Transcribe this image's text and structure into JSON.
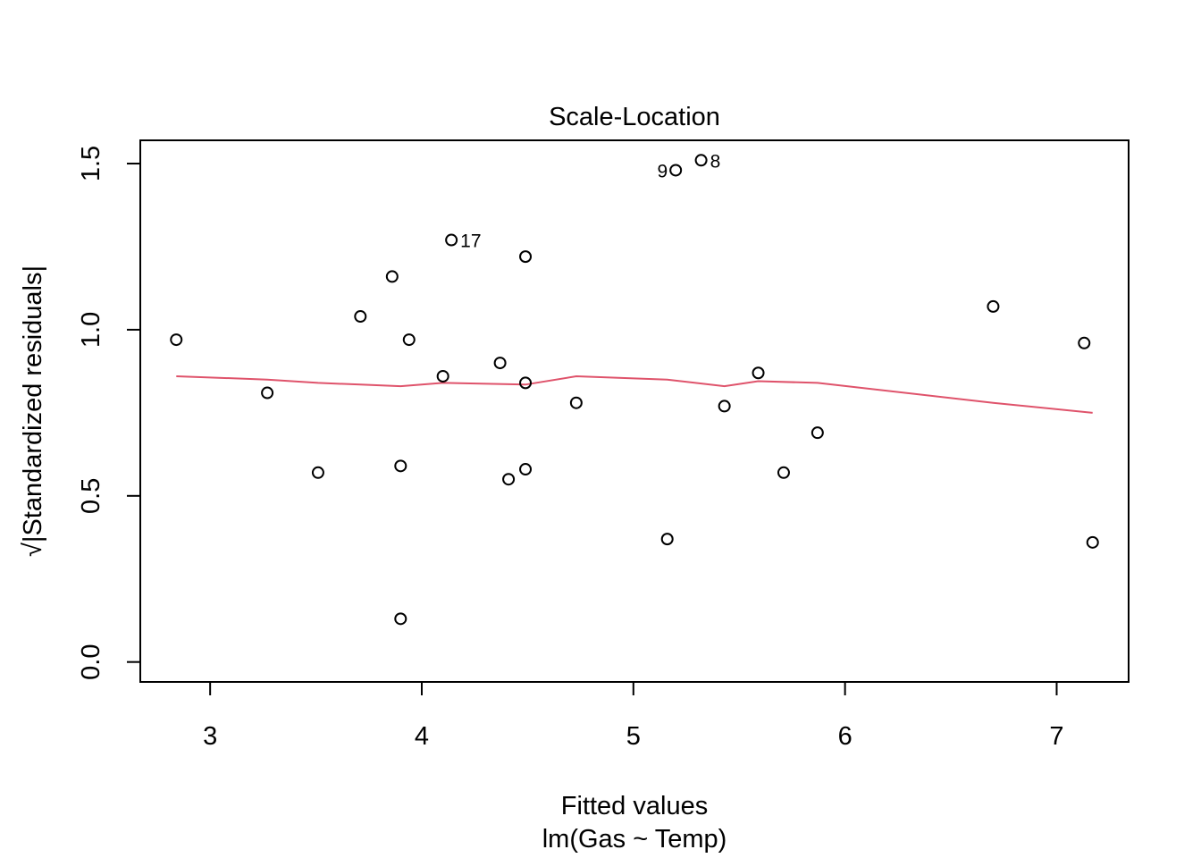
{
  "chart_data": {
    "type": "scatter",
    "title": "Scale-Location",
    "xlabel": "Fitted values",
    "xsublabel": "lm(Gas ~ Temp)",
    "ylabel": "√|Standardized residuals|",
    "xlim": [
      2.67,
      7.34
    ],
    "ylim": [
      -0.06,
      1.57
    ],
    "xticks": [
      3,
      4,
      5,
      6,
      7
    ],
    "yticks": [
      0.0,
      0.5,
      1.0,
      1.5
    ],
    "ytick_labels": [
      "0.0",
      "0.5",
      "1.0",
      "1.5"
    ],
    "points": [
      {
        "x": 2.84,
        "y": 0.97
      },
      {
        "x": 3.27,
        "y": 0.81
      },
      {
        "x": 3.51,
        "y": 0.57
      },
      {
        "x": 3.71,
        "y": 1.04
      },
      {
        "x": 3.86,
        "y": 1.16
      },
      {
        "x": 3.9,
        "y": 0.59
      },
      {
        "x": 3.9,
        "y": 0.13
      },
      {
        "x": 3.94,
        "y": 0.97
      },
      {
        "x": 4.1,
        "y": 0.86
      },
      {
        "x": 4.14,
        "y": 1.27,
        "label": "17"
      },
      {
        "x": 4.37,
        "y": 0.9
      },
      {
        "x": 4.41,
        "y": 0.55
      },
      {
        "x": 4.49,
        "y": 1.22
      },
      {
        "x": 4.49,
        "y": 0.84
      },
      {
        "x": 4.49,
        "y": 0.58
      },
      {
        "x": 4.73,
        "y": 0.78
      },
      {
        "x": 5.16,
        "y": 0.37
      },
      {
        "x": 5.2,
        "y": 1.48,
        "label": "9"
      },
      {
        "x": 5.32,
        "y": 1.51,
        "label": "8"
      },
      {
        "x": 5.43,
        "y": 0.77
      },
      {
        "x": 5.59,
        "y": 0.87
      },
      {
        "x": 5.71,
        "y": 0.57
      },
      {
        "x": 5.87,
        "y": 0.69
      },
      {
        "x": 6.7,
        "y": 1.07
      },
      {
        "x": 7.13,
        "y": 0.96
      },
      {
        "x": 7.17,
        "y": 0.36
      }
    ],
    "smooth": {
      "name": "lowess",
      "color": "#DF536B",
      "x": [
        2.84,
        3.27,
        3.51,
        3.71,
        3.9,
        4.1,
        4.49,
        4.73,
        5.16,
        5.43,
        5.59,
        5.87,
        6.7,
        7.17
      ],
      "y": [
        0.86,
        0.85,
        0.84,
        0.835,
        0.83,
        0.84,
        0.835,
        0.86,
        0.85,
        0.83,
        0.845,
        0.84,
        0.78,
        0.75
      ]
    },
    "grid": false
  }
}
